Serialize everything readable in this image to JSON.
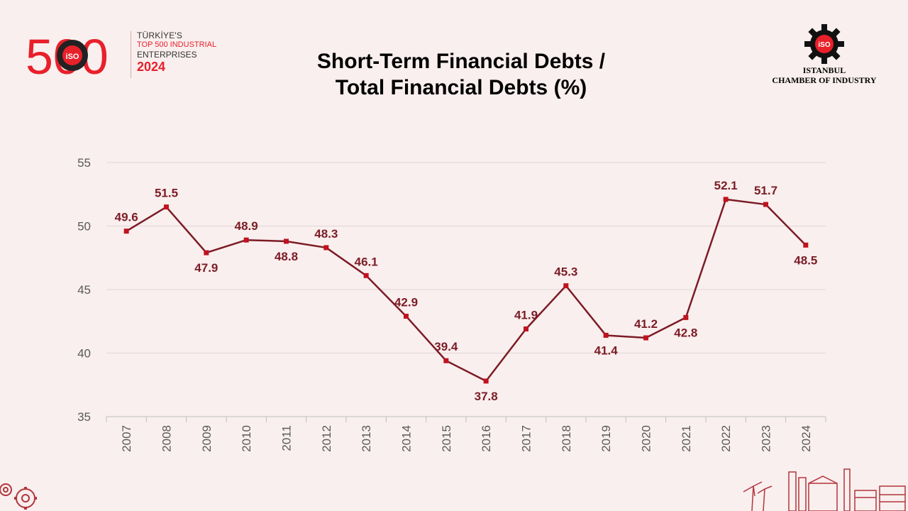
{
  "header": {
    "logo_number": "500",
    "logo_badge": "iSO",
    "brand_line1": "TÜRKİYE'S",
    "brand_line2": "TOP 500 INDUSTRIAL",
    "brand_line3": "ENTERPRISES",
    "brand_year": "2024",
    "title_line1": "Short-Term Financial Debts /",
    "title_line2": "Total Financial Debts (%)",
    "org_line1": "ISTANBUL",
    "org_line2": "CHAMBER OF INDUSTRY"
  },
  "colors": {
    "background": "#f9efee",
    "line": "#7b1c26",
    "marker": "#c0121f",
    "label": "#7b1c26",
    "brand_red": "#e8202a"
  },
  "chart_data": {
    "type": "line",
    "title": "Short-Term Financial Debts / Total Financial Debts (%)",
    "categories": [
      "2007",
      "2008",
      "2009",
      "2010",
      "2011",
      "2012",
      "2013",
      "2014",
      "2015",
      "2016",
      "2017",
      "2018",
      "2019",
      "2020",
      "2021",
      "2022",
      "2023",
      "2024"
    ],
    "series": [
      {
        "values": [
          49.6,
          51.5,
          47.9,
          48.9,
          48.8,
          48.3,
          46.1,
          42.9,
          39.4,
          37.8,
          41.9,
          45.3,
          41.4,
          41.2,
          42.8,
          52.1,
          51.7,
          48.5
        ]
      }
    ],
    "labels": [
      "49.6",
      "51.5",
      "47.9",
      "48.9",
      "48.8",
      "48.3",
      "46.1",
      "42.9",
      "39.4",
      "37.8",
      "41.9",
      "45.3",
      "41.4",
      "41.2",
      "42.8",
      "52.1",
      "51.7",
      "48.5"
    ],
    "label_position": [
      "above",
      "above",
      "below",
      "above",
      "below",
      "above",
      "above",
      "above",
      "above",
      "below",
      "above",
      "above",
      "below",
      "above",
      "below",
      "above",
      "above",
      "below"
    ],
    "ylim": [
      35,
      55
    ],
    "yticks": [
      "35",
      "40",
      "45",
      "50",
      "55"
    ],
    "grid": true,
    "xlabel": "",
    "ylabel": ""
  }
}
